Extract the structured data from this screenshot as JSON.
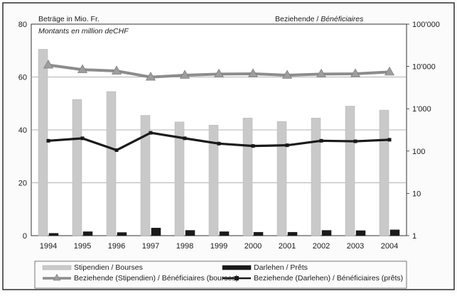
{
  "chart_data": {
    "type": "bar",
    "header_left": "Beträge in Mio. Fr.",
    "header_left_sub": "Montants en million deCHF",
    "header_right_prefix": "Beziehende / ",
    "header_right_italic": "Bénéficiaires",
    "categories": [
      "1994",
      "1995",
      "1996",
      "1997",
      "1998",
      "1999",
      "2000",
      "2001",
      "2002",
      "2003",
      "2004"
    ],
    "left_axis": {
      "min": 0,
      "max": 80,
      "ticks": [
        0,
        20,
        40,
        60,
        80
      ]
    },
    "right_axis": {
      "scale": "log",
      "min": 1,
      "max": 100000,
      "tick_labels": [
        "1",
        "10",
        "100",
        "1'000",
        "10'000",
        "100'000"
      ]
    },
    "series": [
      {
        "name": "Stipendien / Bourses",
        "kind": "bar",
        "axis": "left",
        "color": "#c9c9c9",
        "values": [
          70.5,
          51.5,
          54.5,
          45.5,
          43.0,
          41.8,
          44.5,
          43.2,
          44.5,
          49.0,
          47.5
        ]
      },
      {
        "name": "Darlehen / Prêts",
        "kind": "bar",
        "axis": "left",
        "color": "#1a1a1a",
        "values": [
          0.9,
          1.5,
          1.2,
          2.9,
          2.0,
          1.5,
          1.3,
          1.3,
          2.0,
          1.9,
          2.2
        ]
      },
      {
        "name": "Beziehende (Stipendien) / Bénéficiaires (bourses)",
        "kind": "line",
        "axis": "right",
        "color": "#8c8c8c",
        "marker": "triangle",
        "values": [
          10800,
          8400,
          7800,
          5600,
          6200,
          6600,
          6700,
          6200,
          6600,
          6700,
          7400
        ]
      },
      {
        "name": "Beziehende (Darlehen) / Bénéficiaires (prêts)",
        "kind": "line",
        "axis": "right",
        "color": "#1a1a1a",
        "marker": "square",
        "values": [
          175,
          200,
          105,
          270,
          200,
          150,
          132,
          137,
          175,
          170,
          185
        ]
      }
    ],
    "grid": true,
    "legend_position": "bottom"
  }
}
